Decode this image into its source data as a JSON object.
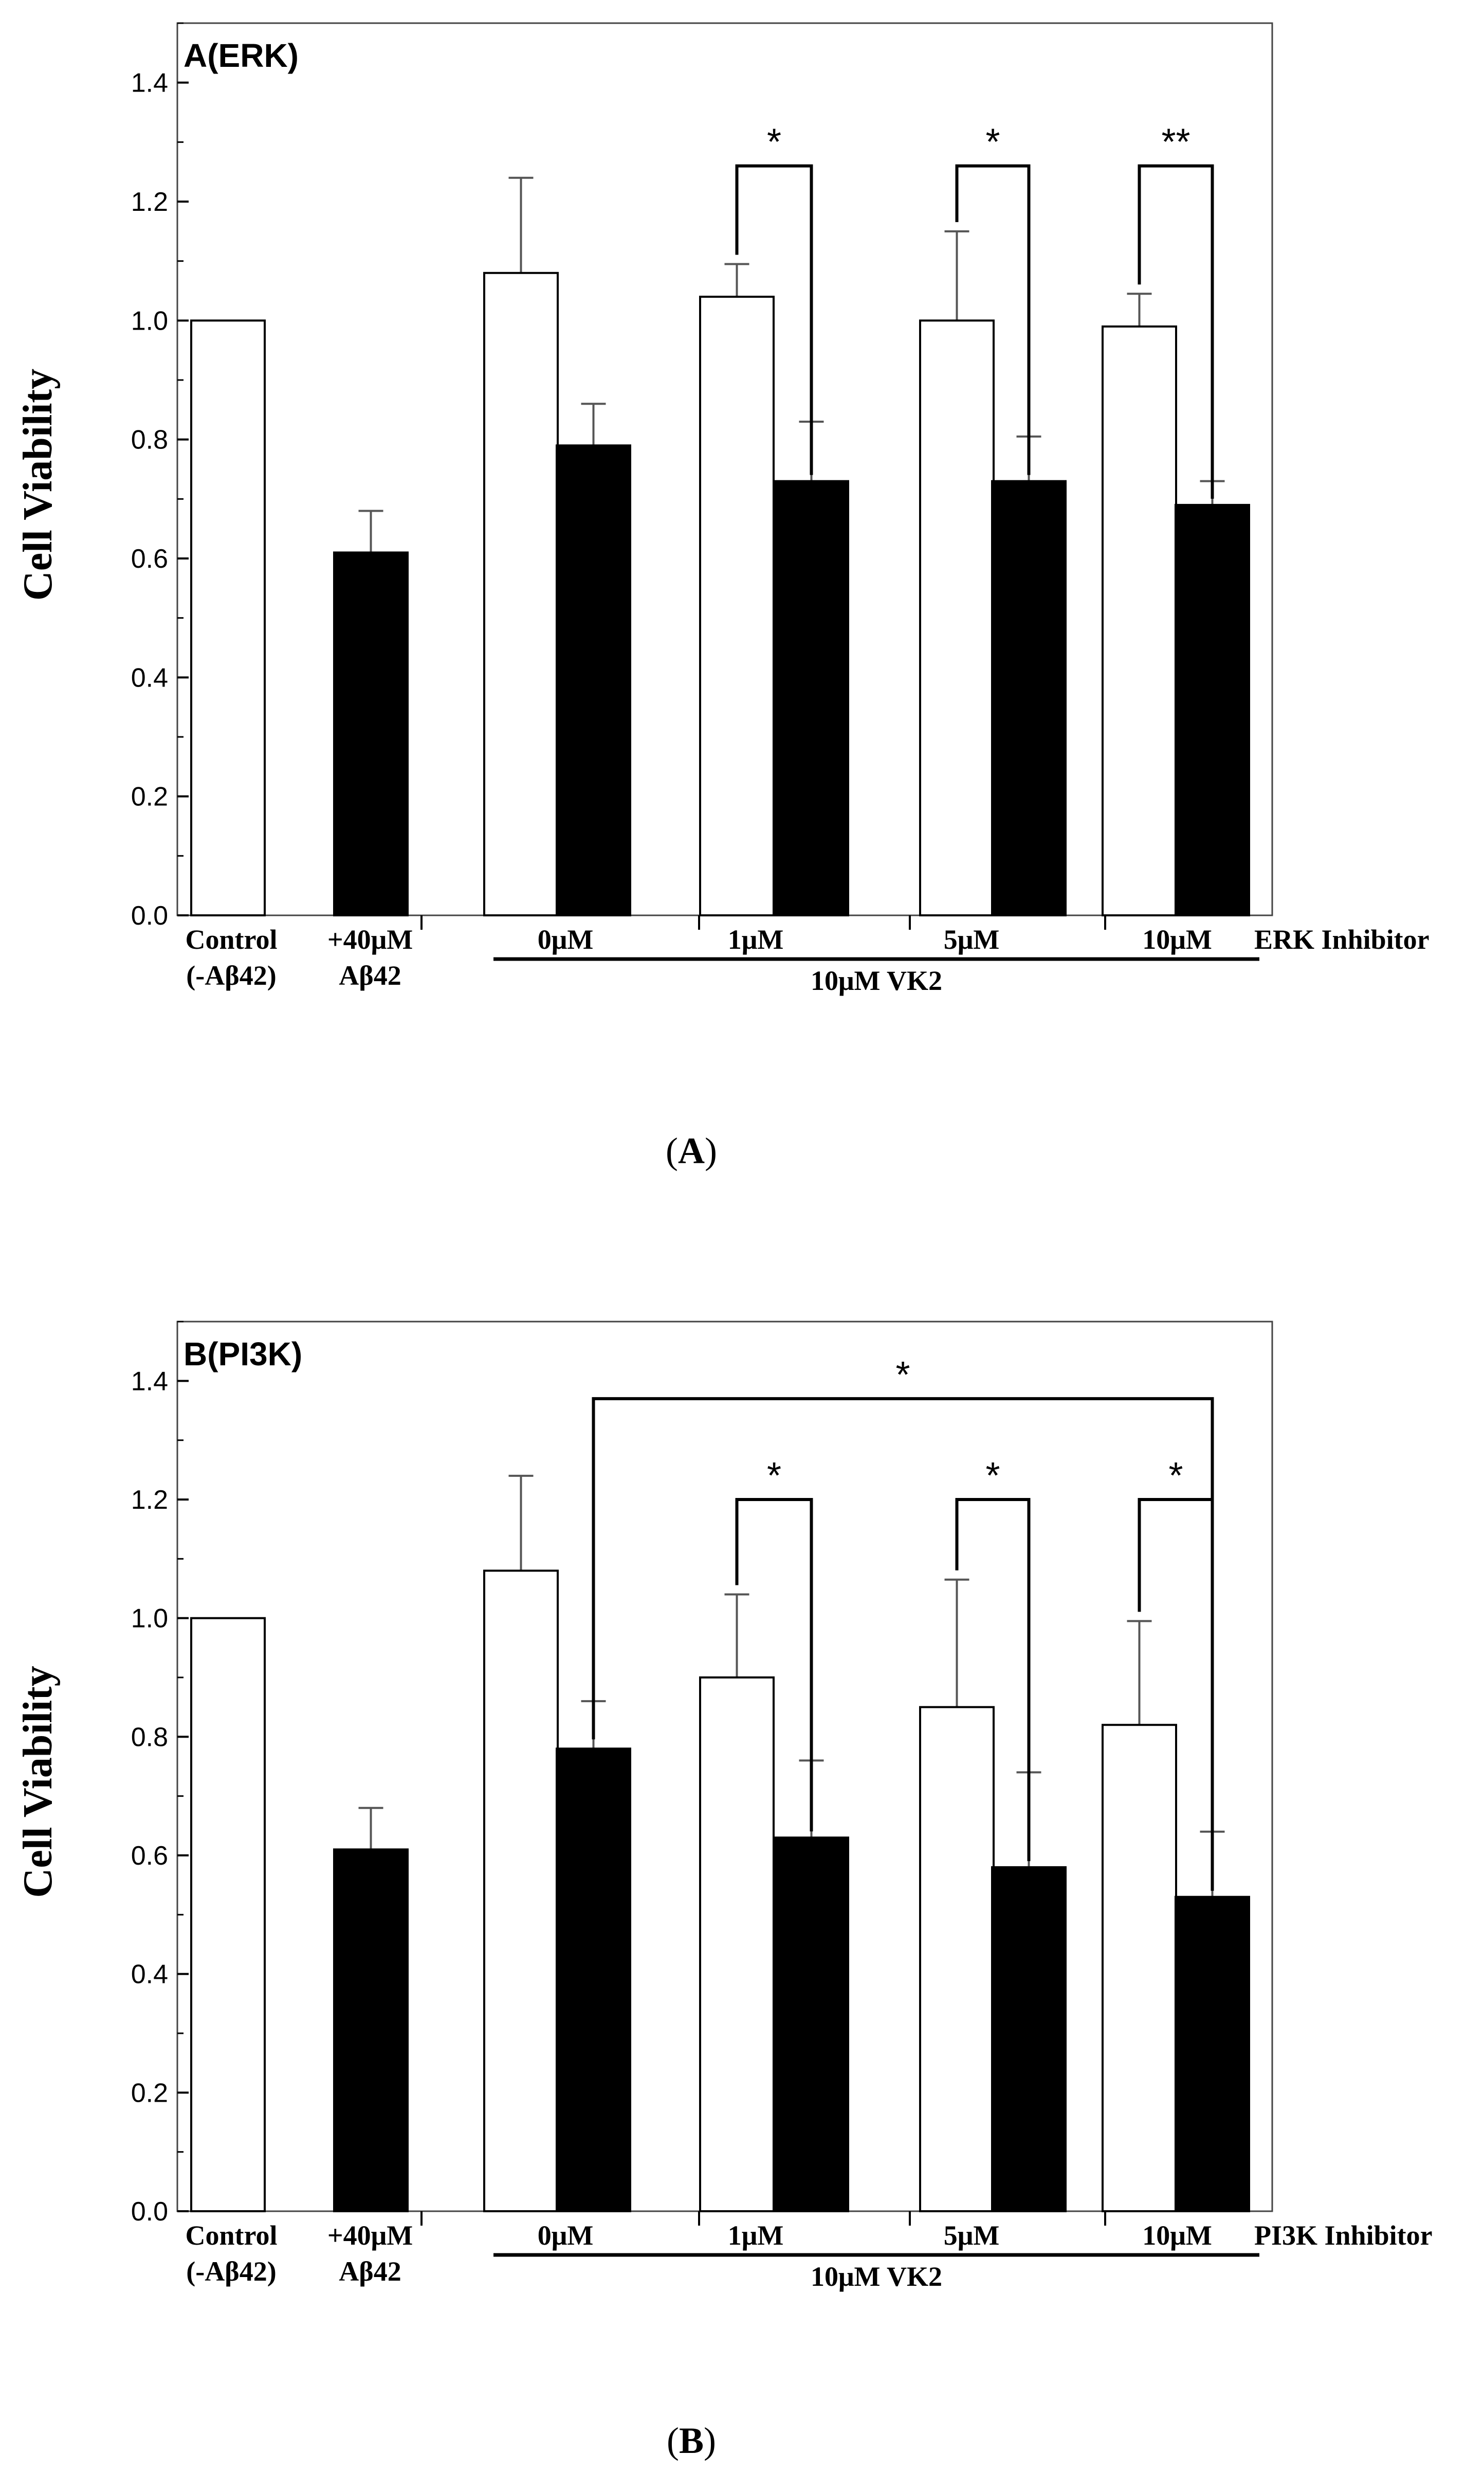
{
  "chart_data": [
    {
      "type": "bar",
      "panel_label": "A(ERK)",
      "caption_letter": "A",
      "ylabel": "Cell Viability",
      "ylim": [
        0,
        1.5
      ],
      "yticks": [
        "0.0",
        "0.2",
        "0.4",
        "0.6",
        "0.8",
        "1.0",
        "1.2",
        "1.4"
      ],
      "yticks_values": [
        0,
        0.2,
        0.4,
        0.6,
        0.8,
        1.0,
        1.2,
        1.4
      ],
      "grid": false,
      "categories": [
        {
          "line1": "Control",
          "line2": "(-Aβ42)"
        },
        {
          "line1": "+40μM",
          "line2": "Aβ42"
        },
        {
          "line1": "0μM",
          "line2": ""
        },
        {
          "line1": "1μM",
          "line2": ""
        },
        {
          "line1": "5μM",
          "line2": ""
        },
        {
          "line1": "10μM",
          "line2": ""
        }
      ],
      "inhibitor_label": "ERK Inhibitor",
      "group_label": "10μM VK2",
      "series": [
        {
          "fill": "#ffffff",
          "values": [
            1.0,
            null,
            1.08,
            1.04,
            1.0,
            0.99
          ],
          "errors": [
            0,
            null,
            0.16,
            0.055,
            0.15,
            0.055
          ]
        },
        {
          "fill": "#000000",
          "values": [
            null,
            0.61,
            0.79,
            0.73,
            0.73,
            0.69
          ],
          "errors": [
            null,
            0.07,
            0.07,
            0.1,
            0.075,
            0.04
          ]
        }
      ],
      "significance": [
        {
          "from": [
            3,
            0
          ],
          "to": [
            3,
            1
          ],
          "y": 1.26,
          "label": "*"
        },
        {
          "from": [
            4,
            0
          ],
          "to": [
            4,
            1
          ],
          "y": 1.26,
          "label": "*"
        },
        {
          "from": [
            5,
            0
          ],
          "to": [
            5,
            1
          ],
          "y": 1.26,
          "label": "**"
        }
      ]
    },
    {
      "type": "bar",
      "panel_label": "B(PI3K)",
      "caption_letter": "B",
      "ylabel": "Cell Viability",
      "ylim": [
        0,
        1.5
      ],
      "yticks": [
        "0.0",
        "0.2",
        "0.4",
        "0.6",
        "0.8",
        "1.0",
        "1.2",
        "1.4"
      ],
      "yticks_values": [
        0,
        0.2,
        0.4,
        0.6,
        0.8,
        1.0,
        1.2,
        1.4
      ],
      "grid": false,
      "categories": [
        {
          "line1": "Control",
          "line2": "(-Aβ42)"
        },
        {
          "line1": "+40μM",
          "line2": "Aβ42"
        },
        {
          "line1": "0μM",
          "line2": ""
        },
        {
          "line1": "1μM",
          "line2": ""
        },
        {
          "line1": "5μM",
          "line2": ""
        },
        {
          "line1": "10μM",
          "line2": ""
        }
      ],
      "inhibitor_label": "PI3K Inhibitor",
      "group_label": "10μM VK2",
      "series": [
        {
          "fill": "#ffffff",
          "values": [
            1.0,
            null,
            1.08,
            0.9,
            0.85,
            0.82
          ],
          "errors": [
            0,
            null,
            0.16,
            0.14,
            0.215,
            0.175
          ]
        },
        {
          "fill": "#000000",
          "values": [
            null,
            0.61,
            0.78,
            0.63,
            0.58,
            0.53
          ],
          "errors": [
            null,
            0.07,
            0.08,
            0.13,
            0.16,
            0.11
          ]
        }
      ],
      "significance": [
        {
          "from": [
            2,
            1
          ],
          "to": [
            5,
            1
          ],
          "y": 1.37,
          "label": "*"
        },
        {
          "from": [
            3,
            0
          ],
          "to": [
            3,
            1
          ],
          "y": 1.2,
          "label": "*"
        },
        {
          "from": [
            4,
            0
          ],
          "to": [
            4,
            1
          ],
          "y": 1.2,
          "label": "*"
        },
        {
          "from": [
            5,
            0
          ],
          "to": [
            5,
            1
          ],
          "y": 1.2,
          "label": "*"
        }
      ]
    }
  ]
}
